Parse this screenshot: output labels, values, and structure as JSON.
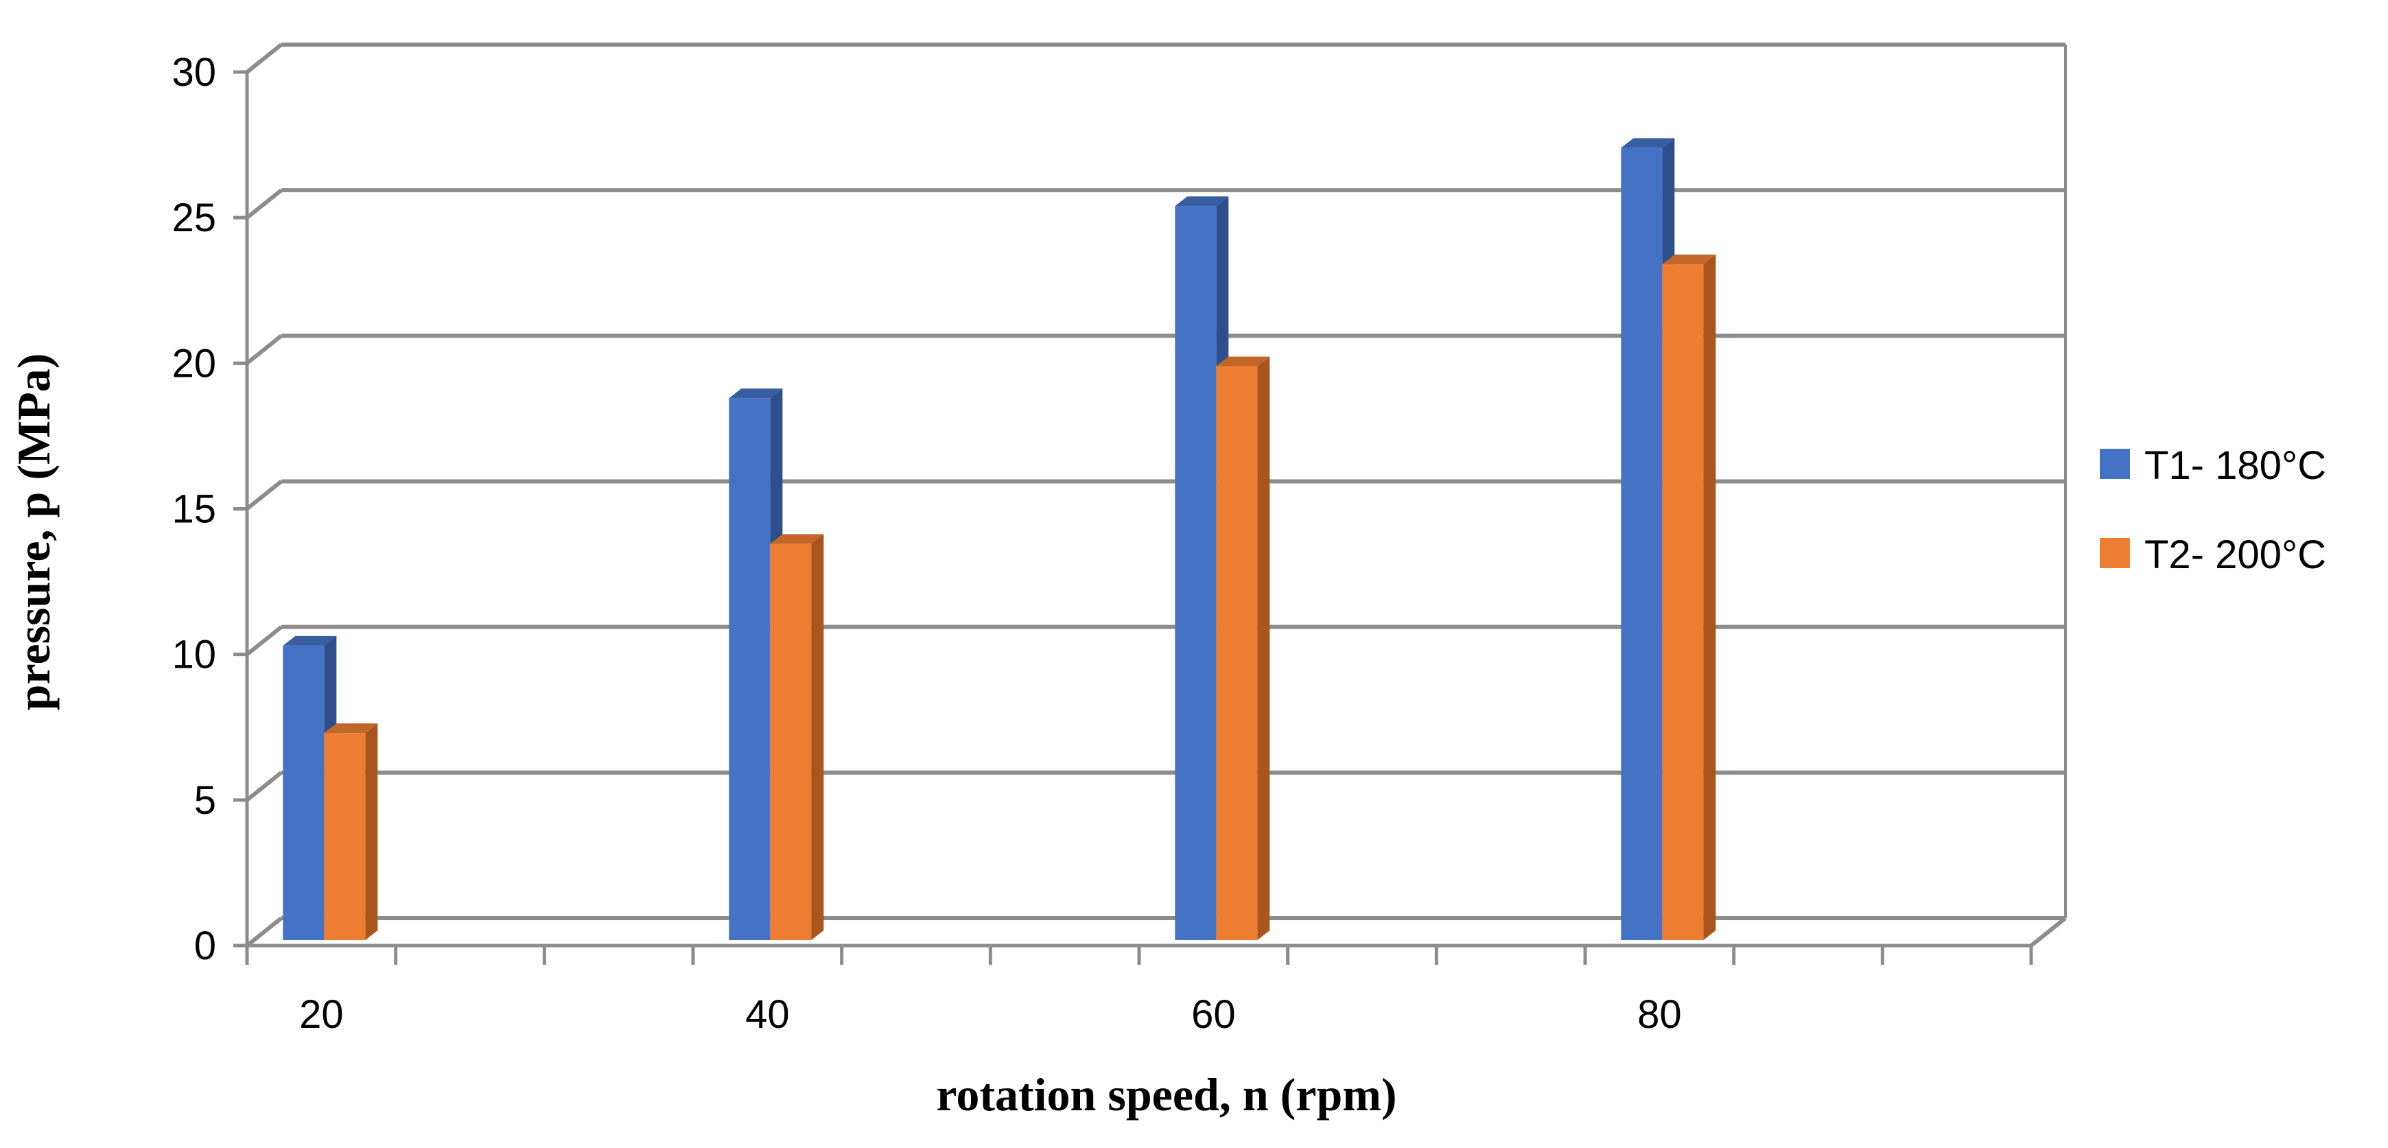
{
  "chart_data": {
    "type": "bar",
    "title": "",
    "xlabel": "rotation speed,  n (rpm)",
    "ylabel": "pressure, p (MPa)",
    "ylim": [
      0,
      30
    ],
    "yticks": [
      0,
      5,
      10,
      15,
      20,
      25,
      30
    ],
    "categories": [
      "20",
      "40",
      "60",
      "80"
    ],
    "series": [
      {
        "name": "T1- 180°C",
        "values": [
          10.3,
          18.8,
          25.4,
          27.4
        ],
        "color": "#4472C4",
        "side_color": "#2F4F8C"
      },
      {
        "name": "T2- 200°C",
        "values": [
          7.3,
          13.8,
          19.9,
          23.4
        ],
        "color": "#ED7D31",
        "side_color": "#A8561E"
      }
    ],
    "grid": true,
    "legend_position": "right"
  }
}
